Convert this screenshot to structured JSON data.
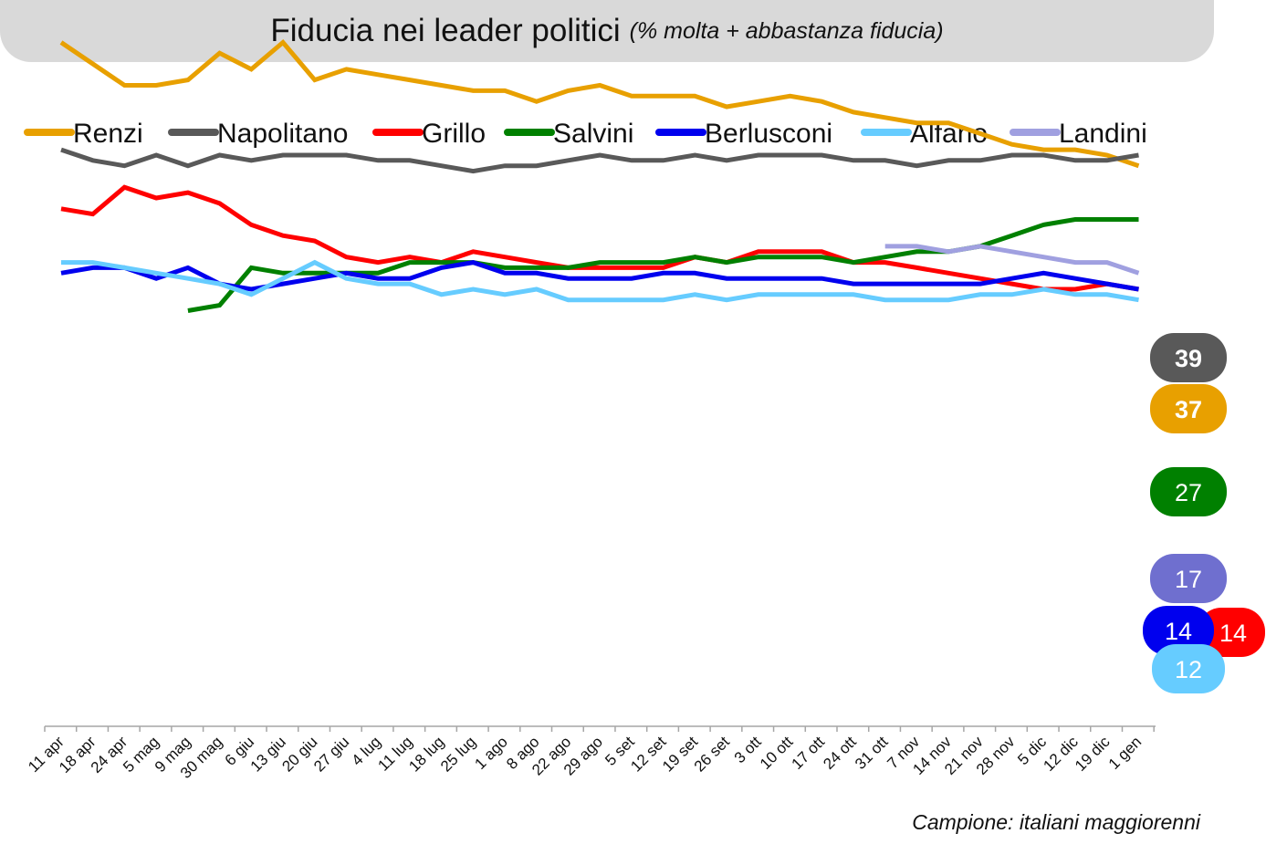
{
  "title": "Fiducia nei leader politici",
  "subtitle": "(% molta + abbastanza fiducia)",
  "footer": "Campione: italiani maggiorenni",
  "chart_data": {
    "type": "line",
    "title": "Fiducia nei leader politici",
    "subtitle": "(% molta + abbastanza fiducia)",
    "xlabel": "",
    "ylabel": "",
    "ylim": [
      5,
      60
    ],
    "grid": false,
    "legend": "top",
    "categories": [
      "11 apr",
      "18 apr",
      "24 apr",
      "5 mag",
      "9 mag",
      "30 mag",
      "6 giu",
      "13 giu",
      "20 giu",
      "27 giu",
      "4 lug",
      "11 lug",
      "18 lug",
      "25 lug",
      "1 ago",
      "8 ago",
      "22 ago",
      "29 ago",
      "5 set",
      "12 set",
      "19 set",
      "26 set",
      "3 ott",
      "10 ott",
      "17 ott",
      "24 ott",
      "31 ott",
      "7 nov",
      "14 nov",
      "21 nov",
      "28 nov",
      "5 dic",
      "12 dic",
      "19 dic",
      "1 gen"
    ],
    "series": [
      {
        "name": "Renzi",
        "color": "#e8a000",
        "label": "37",
        "label_color": "#ffffff",
        "bold": true,
        "values": [
          [
            0,
            57
          ],
          [
            1,
            55
          ],
          [
            2,
            53
          ],
          [
            3,
            53
          ],
          [
            4,
            53.5
          ],
          [
            5,
            56
          ],
          [
            6,
            54.5
          ],
          [
            7,
            57
          ],
          [
            8,
            53.5
          ],
          [
            9,
            54.5
          ],
          [
            10,
            54
          ],
          [
            11,
            53.5
          ],
          [
            12,
            53
          ],
          [
            13,
            52.5
          ],
          [
            14,
            52.5
          ],
          [
            15,
            51.5
          ],
          [
            16,
            52.5
          ],
          [
            17,
            53
          ],
          [
            18,
            52
          ],
          [
            19,
            52
          ],
          [
            20,
            52
          ],
          [
            21,
            51
          ],
          [
            22,
            51.5
          ],
          [
            23,
            52
          ],
          [
            24,
            51.5
          ],
          [
            25,
            50.5
          ],
          [
            26,
            50
          ],
          [
            27,
            49.5
          ],
          [
            28,
            49.5
          ],
          [
            29,
            48.5
          ],
          [
            30,
            47.5
          ],
          [
            31,
            47
          ],
          [
            32,
            47
          ],
          [
            33,
            46.5
          ],
          [
            34,
            45.5
          ]
        ]
      },
      {
        "name": "Napolitano",
        "color": "#595959",
        "label": "39",
        "label_color": "#ffffff",
        "bold": true,
        "values": [
          [
            0,
            47
          ],
          [
            1,
            46
          ],
          [
            2,
            45.5
          ],
          [
            3,
            46.5
          ],
          [
            4,
            45.5
          ],
          [
            5,
            46.5
          ],
          [
            6,
            46
          ],
          [
            7,
            46.5
          ],
          [
            8,
            46.5
          ],
          [
            9,
            46.5
          ],
          [
            10,
            46
          ],
          [
            11,
            46
          ],
          [
            12,
            45.5
          ],
          [
            13,
            45
          ],
          [
            14,
            45.5
          ],
          [
            15,
            45.5
          ],
          [
            16,
            46
          ],
          [
            17,
            46.5
          ],
          [
            18,
            46
          ],
          [
            19,
            46
          ],
          [
            20,
            46.5
          ],
          [
            21,
            46
          ],
          [
            22,
            46.5
          ],
          [
            23,
            46.5
          ],
          [
            24,
            46.5
          ],
          [
            25,
            46
          ],
          [
            26,
            46
          ],
          [
            27,
            45.5
          ],
          [
            28,
            46
          ],
          [
            29,
            46
          ],
          [
            30,
            46.5
          ],
          [
            31,
            46.5
          ],
          [
            32,
            46
          ],
          [
            33,
            46
          ],
          [
            34,
            46.5
          ]
        ]
      },
      {
        "name": "Grillo",
        "color": "#ff0000",
        "label": "14",
        "label_color": "#ffffff",
        "bold": false,
        "values": [
          [
            0,
            41.5
          ],
          [
            1,
            41
          ],
          [
            2,
            43.5
          ],
          [
            3,
            42.5
          ],
          [
            4,
            43
          ],
          [
            5,
            42
          ],
          [
            6,
            40
          ],
          [
            7,
            39
          ],
          [
            8,
            38.5
          ],
          [
            9,
            37
          ],
          [
            10,
            36.5
          ],
          [
            11,
            37
          ],
          [
            12,
            36.5
          ],
          [
            13,
            37.5
          ],
          [
            14,
            37
          ],
          [
            15,
            36.5
          ],
          [
            16,
            36
          ],
          [
            17,
            36
          ],
          [
            18,
            36
          ],
          [
            19,
            36
          ],
          [
            20,
            37
          ],
          [
            21,
            36.5
          ],
          [
            22,
            37.5
          ],
          [
            23,
            37.5
          ],
          [
            24,
            37.5
          ],
          [
            25,
            36.5
          ],
          [
            26,
            36.5
          ],
          [
            27,
            36
          ],
          [
            28,
            35.5
          ],
          [
            29,
            35
          ],
          [
            30,
            34.5
          ],
          [
            31,
            34
          ],
          [
            32,
            34
          ],
          [
            33,
            34.5
          ],
          [
            34,
            34
          ]
        ]
      },
      {
        "name": "Salvini",
        "color": "#008000",
        "label": "27",
        "label_color": "#ffffff",
        "bold": false,
        "values": [
          [
            4,
            32
          ],
          [
            5,
            32.5
          ],
          [
            6,
            36
          ],
          [
            7,
            35.5
          ],
          [
            8,
            35.5
          ],
          [
            9,
            35.5
          ],
          [
            10,
            35.5
          ],
          [
            11,
            36.5
          ],
          [
            12,
            36.5
          ],
          [
            13,
            36.5
          ],
          [
            14,
            36
          ],
          [
            15,
            36
          ],
          [
            16,
            36
          ],
          [
            17,
            36.5
          ],
          [
            18,
            36.5
          ],
          [
            19,
            36.5
          ],
          [
            20,
            37
          ],
          [
            21,
            36.5
          ],
          [
            22,
            37
          ],
          [
            23,
            37
          ],
          [
            24,
            37
          ],
          [
            25,
            36.5
          ],
          [
            26,
            37
          ],
          [
            27,
            37.5
          ],
          [
            28,
            37.5
          ],
          [
            29,
            38
          ],
          [
            30,
            39
          ],
          [
            31,
            40
          ],
          [
            32,
            40.5
          ],
          [
            33,
            40.5
          ],
          [
            34,
            40.5
          ]
        ]
      },
      {
        "name": "Berlusconi",
        "color": "#0000ee",
        "label": "14",
        "label_color": "#ffffff",
        "bold": false,
        "values": [
          [
            0,
            35.5
          ],
          [
            1,
            36
          ],
          [
            2,
            36
          ],
          [
            3,
            35
          ],
          [
            4,
            36
          ],
          [
            5,
            34.5
          ],
          [
            6,
            34
          ],
          [
            7,
            34.5
          ],
          [
            8,
            35
          ],
          [
            9,
            35.5
          ],
          [
            10,
            35
          ],
          [
            11,
            35
          ],
          [
            12,
            36
          ],
          [
            13,
            36.5
          ],
          [
            14,
            35.5
          ],
          [
            15,
            35.5
          ],
          [
            16,
            35
          ],
          [
            17,
            35
          ],
          [
            18,
            35
          ],
          [
            19,
            35.5
          ],
          [
            20,
            35.5
          ],
          [
            21,
            35
          ],
          [
            22,
            35
          ],
          [
            23,
            35
          ],
          [
            24,
            35
          ],
          [
            25,
            34.5
          ],
          [
            26,
            34.5
          ],
          [
            27,
            34.5
          ],
          [
            28,
            34.5
          ],
          [
            29,
            34.5
          ],
          [
            30,
            35
          ],
          [
            31,
            35.5
          ],
          [
            32,
            35
          ],
          [
            33,
            34.5
          ],
          [
            34,
            34
          ]
        ]
      },
      {
        "name": "Alfano",
        "color": "#66ccff",
        "label": "12",
        "label_color": "#ffffff",
        "bold": false,
        "values": [
          [
            0,
            36.5
          ],
          [
            1,
            36.5
          ],
          [
            2,
            36
          ],
          [
            3,
            35.5
          ],
          [
            4,
            35
          ],
          [
            5,
            34.5
          ],
          [
            6,
            33.5
          ],
          [
            7,
            35
          ],
          [
            8,
            36.5
          ],
          [
            9,
            35
          ],
          [
            10,
            34.5
          ],
          [
            11,
            34.5
          ],
          [
            12,
            33.5
          ],
          [
            13,
            34
          ],
          [
            14,
            33.5
          ],
          [
            15,
            34
          ],
          [
            16,
            33
          ],
          [
            17,
            33
          ],
          [
            18,
            33
          ],
          [
            19,
            33
          ],
          [
            20,
            33.5
          ],
          [
            21,
            33
          ],
          [
            22,
            33.5
          ],
          [
            23,
            33.5
          ],
          [
            24,
            33.5
          ],
          [
            25,
            33.5
          ],
          [
            26,
            33
          ],
          [
            27,
            33
          ],
          [
            28,
            33
          ],
          [
            29,
            33.5
          ],
          [
            30,
            33.5
          ],
          [
            31,
            34
          ],
          [
            32,
            33.5
          ],
          [
            33,
            33.5
          ],
          [
            34,
            33
          ]
        ]
      },
      {
        "name": "Landini",
        "color": "#a0a0e0",
        "label": "17",
        "label_color": "#ffffff",
        "bold": false,
        "values": [
          [
            26,
            38
          ],
          [
            27,
            38
          ],
          [
            28,
            37.5
          ],
          [
            29,
            38
          ],
          [
            30,
            37.5
          ],
          [
            31,
            37
          ],
          [
            32,
            36.5
          ],
          [
            33,
            36.5
          ],
          [
            34,
            35.5
          ]
        ]
      }
    ]
  }
}
